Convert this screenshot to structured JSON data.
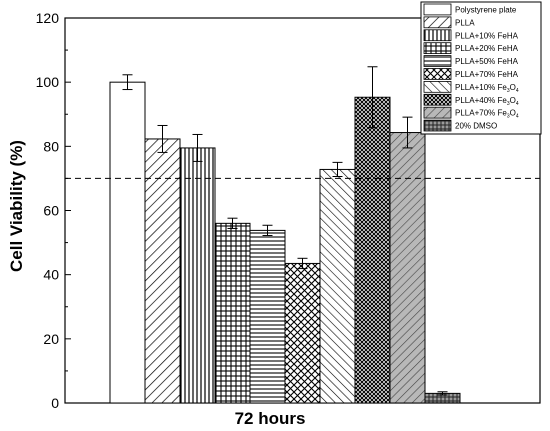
{
  "chart_data": {
    "type": "bar",
    "title": "",
    "xlabel": "72 hours",
    "ylabel": "Cell Viability (%)",
    "ylim": [
      0,
      120
    ],
    "yticks": [
      0,
      20,
      40,
      60,
      80,
      100,
      120
    ],
    "threshold": 70,
    "legend_position": "top-right",
    "series": [
      {
        "name": "Polystyrene plate",
        "value": 100,
        "error": 2.3,
        "pattern": "blank"
      },
      {
        "name": "PLLA",
        "value": 82.3,
        "error": 4.2,
        "pattern": "diag-right"
      },
      {
        "name": "PLLA+10% FeHA",
        "value": 79.5,
        "error": 4.2,
        "pattern": "vertical"
      },
      {
        "name": "PLLA+20% FeHA",
        "value": 56,
        "error": 1.6,
        "pattern": "grid"
      },
      {
        "name": "PLLA+50% FeHA",
        "value": 53.8,
        "error": 1.6,
        "pattern": "horizontal"
      },
      {
        "name": "PLLA+70% FeHA",
        "value": 43.5,
        "error": 1.6,
        "pattern": "crosshatch"
      },
      {
        "name": "PLLA+10% Fe",
        "sub": "3",
        "tail": "O",
        "sub2": "4",
        "value": 72.8,
        "error": 2.2,
        "pattern": "diag-left"
      },
      {
        "name": "PLLA+40% Fe",
        "sub": "3",
        "tail": "O",
        "sub2": "4",
        "value": 95.3,
        "error": 9.5,
        "pattern": "dense-cross"
      },
      {
        "name": "PLLA+70% Fe",
        "sub": "3",
        "tail": "O",
        "sub2": "4",
        "value": 84.3,
        "error": 4.8,
        "pattern": "gray-diag"
      },
      {
        "name": "20% DMSO",
        "value": 3,
        "error": 0.5,
        "pattern": "gray-grid"
      }
    ]
  }
}
